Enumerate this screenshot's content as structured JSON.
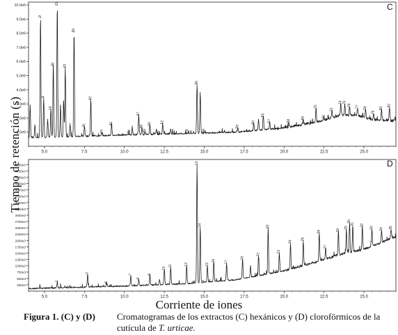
{
  "figure": {
    "ylabel": "Tiempo de retención (s)",
    "xlabel": "Corriente de iones",
    "caption_label": "Figura 1. (C) y (D)",
    "caption_text": "Cromatogramas de los extractos (C) hexánicos y (D) cloroförmicos de la cutícula de",
    "caption_species": "T. urticae."
  },
  "chart_data": [
    {
      "type": "line",
      "panel": "C",
      "xlim": [
        4,
        27
      ],
      "x_ticks": [
        "5.0",
        "7.5",
        "10.0",
        "12.5",
        "15.0",
        "17.5",
        "20.0",
        "22.5",
        "25.0"
      ],
      "x_tick_values": [
        5,
        7.5,
        10,
        12.5,
        15,
        17.5,
        20,
        22.5,
        25
      ],
      "ylim": [
        0,
        10.2
      ],
      "y_ticks": [
        "1.0e6",
        "2.0e6",
        "3.0e6",
        "4.0e6",
        "5.0e6",
        "6.0e6",
        "7.0e6",
        "8.0e6",
        "9.0e6",
        "10.0e6"
      ],
      "y_tick_values": [
        1,
        2,
        3,
        4,
        5,
        6,
        7,
        8,
        9,
        10
      ],
      "baseline": [
        [
          4,
          0.6
        ],
        [
          10,
          0.8
        ],
        [
          14,
          0.9
        ],
        [
          17,
          1.0
        ],
        [
          20,
          1.3
        ],
        [
          22,
          1.7
        ],
        [
          23.5,
          2.2
        ],
        [
          24.5,
          2.2
        ],
        [
          25.5,
          1.9
        ],
        [
          27,
          1.8
        ]
      ],
      "peaks": [
        {
          "x": 4.1,
          "y": 2.9,
          "label": ""
        },
        {
          "x": 4.4,
          "y": 1.5,
          "label": ""
        },
        {
          "x": 4.75,
          "y": 9.1,
          "label": "9"
        },
        {
          "x": 4.95,
          "y": 3.4,
          "label": "6"
        },
        {
          "x": 5.2,
          "y": 1.9,
          "label": ""
        },
        {
          "x": 5.4,
          "y": 2.6,
          "label": "18"
        },
        {
          "x": 5.55,
          "y": 5.7,
          "label": "20"
        },
        {
          "x": 5.8,
          "y": 10.0,
          "label": "21"
        },
        {
          "x": 6.0,
          "y": 2.8,
          "label": ""
        },
        {
          "x": 6.2,
          "y": 3.2,
          "label": ""
        },
        {
          "x": 6.3,
          "y": 5.6,
          "label": "33"
        },
        {
          "x": 6.6,
          "y": 1.6,
          "label": ""
        },
        {
          "x": 6.85,
          "y": 8.1,
          "label": "39"
        },
        {
          "x": 7.5,
          "y": 1.4,
          "label": "41"
        },
        {
          "x": 7.9,
          "y": 3.3,
          "label": "42"
        },
        {
          "x": 8.6,
          "y": 0.95,
          "label": "43"
        },
        {
          "x": 9.2,
          "y": 1.5,
          "label": "45"
        },
        {
          "x": 10.3,
          "y": 0.9,
          "label": "46"
        },
        {
          "x": 10.5,
          "y": 1.2,
          "label": ""
        },
        {
          "x": 10.9,
          "y": 2.2,
          "label": "47"
        },
        {
          "x": 11.1,
          "y": 1.3,
          "label": "48"
        },
        {
          "x": 11.3,
          "y": 1.0,
          "label": "49"
        },
        {
          "x": 11.6,
          "y": 1.5,
          "label": "50"
        },
        {
          "x": 12.0,
          "y": 1.2,
          "label": ""
        },
        {
          "x": 12.4,
          "y": 1.6,
          "label": "52"
        },
        {
          "x": 12.9,
          "y": 1.2,
          "label": ""
        },
        {
          "x": 14.0,
          "y": 0.95,
          "label": "53"
        },
        {
          "x": 14.55,
          "y": 4.4,
          "label": "56"
        },
        {
          "x": 14.75,
          "y": 3.8,
          "label": ""
        },
        {
          "x": 15.0,
          "y": 1.0,
          "label": "58"
        },
        {
          "x": 16.2,
          "y": 1.0,
          "label": ""
        },
        {
          "x": 17.1,
          "y": 1.3,
          "label": "59"
        },
        {
          "x": 17.8,
          "y": 1.1,
          "label": ""
        },
        {
          "x": 18.1,
          "y": 1.6,
          "label": "60"
        },
        {
          "x": 18.4,
          "y": 1.9,
          "label": ""
        },
        {
          "x": 18.7,
          "y": 2.1,
          "label": "65"
        },
        {
          "x": 19.1,
          "y": 1.7,
          "label": "67"
        },
        {
          "x": 19.6,
          "y": 1.2,
          "label": ""
        },
        {
          "x": 20.3,
          "y": 1.7,
          "label": "68"
        },
        {
          "x": 21.2,
          "y": 1.9,
          "label": "69"
        },
        {
          "x": 22.0,
          "y": 2.7,
          "label": "70"
        },
        {
          "x": 22.5,
          "y": 2.0,
          "label": "71"
        },
        {
          "x": 23.0,
          "y": 2.5,
          "label": "72"
        },
        {
          "x": 23.55,
          "y": 3.0,
          "label": "74"
        },
        {
          "x": 23.8,
          "y": 3.0,
          "label": "75"
        },
        {
          "x": 24.1,
          "y": 2.8,
          "label": "76"
        },
        {
          "x": 24.6,
          "y": 2.7,
          "label": "77"
        },
        {
          "x": 25.1,
          "y": 2.6,
          "label": "78"
        },
        {
          "x": 25.6,
          "y": 2.3,
          "label": "79"
        },
        {
          "x": 26.1,
          "y": 2.6,
          "label": "80"
        },
        {
          "x": 26.6,
          "y": 2.8,
          "label": "81"
        }
      ]
    },
    {
      "type": "line",
      "panel": "D",
      "xlim": [
        4,
        27
      ],
      "x_ticks": [
        "5.0",
        "7.5",
        "10.0",
        "12.5",
        "15.0",
        "17.5",
        "20.0",
        "22.5",
        "25.0"
      ],
      "x_tick_values": [
        5,
        7.5,
        10,
        12.5,
        15,
        17.5,
        20,
        22.5,
        25
      ],
      "ylim": [
        0,
        5200
      ],
      "y_ticks": [
        "250e3",
        "500e3",
        "750e3",
        "1000e3",
        "1250e3",
        "1500e3",
        "1750e3",
        "2000e3",
        "2250e3",
        "2500e3",
        "2750e3",
        "3000e3",
        "3250e3",
        "3500e3",
        "3750e3",
        "4000e3",
        "4250e3",
        "4500e3",
        "4750e3",
        "5000e3"
      ],
      "y_tick_values": [
        250,
        500,
        750,
        1000,
        1250,
        1500,
        1750,
        2000,
        2250,
        2500,
        2750,
        3000,
        3250,
        3500,
        3750,
        4000,
        4250,
        4500,
        4750,
        5000
      ],
      "baseline": [
        [
          4,
          100
        ],
        [
          10,
          200
        ],
        [
          14,
          300
        ],
        [
          17,
          450
        ],
        [
          20,
          800
        ],
        [
          22,
          1150
        ],
        [
          23.5,
          1450
        ],
        [
          25,
          1650
        ],
        [
          27,
          2150
        ]
      ],
      "peaks": [
        {
          "x": 5.8,
          "y": 350,
          "label": "1"
        },
        {
          "x": 7.7,
          "y": 650,
          "label": "3"
        },
        {
          "x": 8.9,
          "y": 300,
          "label": "5"
        },
        {
          "x": 10.4,
          "y": 600,
          "label": "7"
        },
        {
          "x": 10.9,
          "y": 450,
          "label": "8"
        },
        {
          "x": 11.6,
          "y": 600,
          "label": "9"
        },
        {
          "x": 12.2,
          "y": 450,
          "label": ""
        },
        {
          "x": 12.5,
          "y": 850,
          "label": "10"
        },
        {
          "x": 12.9,
          "y": 950,
          "label": "11"
        },
        {
          "x": 13.9,
          "y": 1000,
          "label": "12"
        },
        {
          "x": 14.55,
          "y": 5000,
          "label": "13"
        },
        {
          "x": 14.75,
          "y": 2550,
          "label": "14"
        },
        {
          "x": 15.2,
          "y": 1000,
          "label": "15"
        },
        {
          "x": 15.6,
          "y": 1150,
          "label": "16"
        },
        {
          "x": 16.4,
          "y": 1100,
          "label": "17"
        },
        {
          "x": 17.4,
          "y": 1250,
          "label": "18"
        },
        {
          "x": 17.9,
          "y": 1000,
          "label": ""
        },
        {
          "x": 18.4,
          "y": 1400,
          "label": "21"
        },
        {
          "x": 19.0,
          "y": 2500,
          "label": "22"
        },
        {
          "x": 19.7,
          "y": 1500,
          "label": "23"
        },
        {
          "x": 20.4,
          "y": 1900,
          "label": "24"
        },
        {
          "x": 21.2,
          "y": 2000,
          "label": "25"
        },
        {
          "x": 22.2,
          "y": 2300,
          "label": "26"
        },
        {
          "x": 22.6,
          "y": 1700,
          "label": "27"
        },
        {
          "x": 23.4,
          "y": 2350,
          "label": "28"
        },
        {
          "x": 23.9,
          "y": 2450,
          "label": "29"
        },
        {
          "x": 24.1,
          "y": 2700,
          "label": "30"
        },
        {
          "x": 24.3,
          "y": 2600,
          "label": "31"
        },
        {
          "x": 24.9,
          "y": 2550,
          "label": "32"
        },
        {
          "x": 25.5,
          "y": 2450,
          "label": "33"
        },
        {
          "x": 26.1,
          "y": 2400,
          "label": "34"
        },
        {
          "x": 26.7,
          "y": 2450,
          "label": "35"
        }
      ]
    }
  ]
}
